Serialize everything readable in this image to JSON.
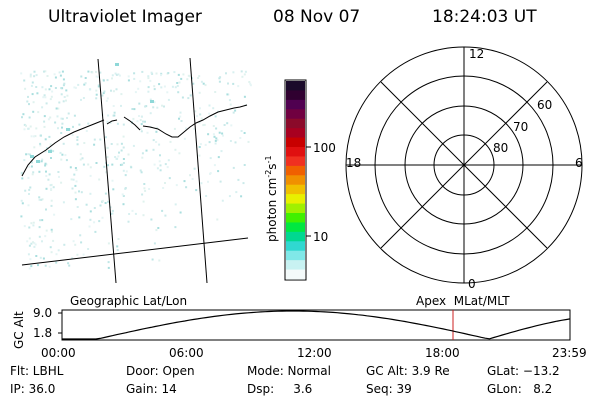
{
  "header": {
    "title": "Ultraviolet Imager",
    "date": "08 Nov 07",
    "time": "18:24:03 UT"
  },
  "colorbar": {
    "label_parts": [
      "photon cm",
      "-2",
      "s",
      "-1"
    ],
    "ticks": [
      "100",
      "10"
    ],
    "colors": [
      "#1a0a2a",
      "#300030",
      "#500050",
      "#700040",
      "#8b0a2a",
      "#a80020",
      "#c80000",
      "#e01010",
      "#f03020",
      "#f06000",
      "#f09000",
      "#f0c000",
      "#e8f000",
      "#a0f000",
      "#40f000",
      "#00e840",
      "#00d890",
      "#30d8d0",
      "#80e8e8",
      "#c8f2f2",
      "#f4fafa"
    ]
  },
  "labels": {
    "left_map": "Geographic Lat/Lon",
    "right_map": "Apex  MLat/MLT"
  },
  "polar": {
    "top": "12",
    "left": "18",
    "right": "6",
    "bottom": "0",
    "lat_labels": [
      "60",
      "70",
      "80"
    ]
  },
  "altitude": {
    "axis_label": "GC Alt",
    "ticks": [
      "9.0",
      "1.8"
    ],
    "time_ticks": [
      "00:00",
      "06:00",
      "12:00",
      "18:00",
      "23:59"
    ]
  },
  "status": {
    "row1": [
      "Flt: LBHL",
      "Door: Open",
      "Mode: Normal",
      "GC Alt: 3.9 Re",
      "GLat: −13.2"
    ],
    "row2": [
      "IP: 36.0",
      "Gain: 14",
      "Dsp:     3.6",
      "Seq: 39",
      "GLon:   8.2"
    ]
  }
}
